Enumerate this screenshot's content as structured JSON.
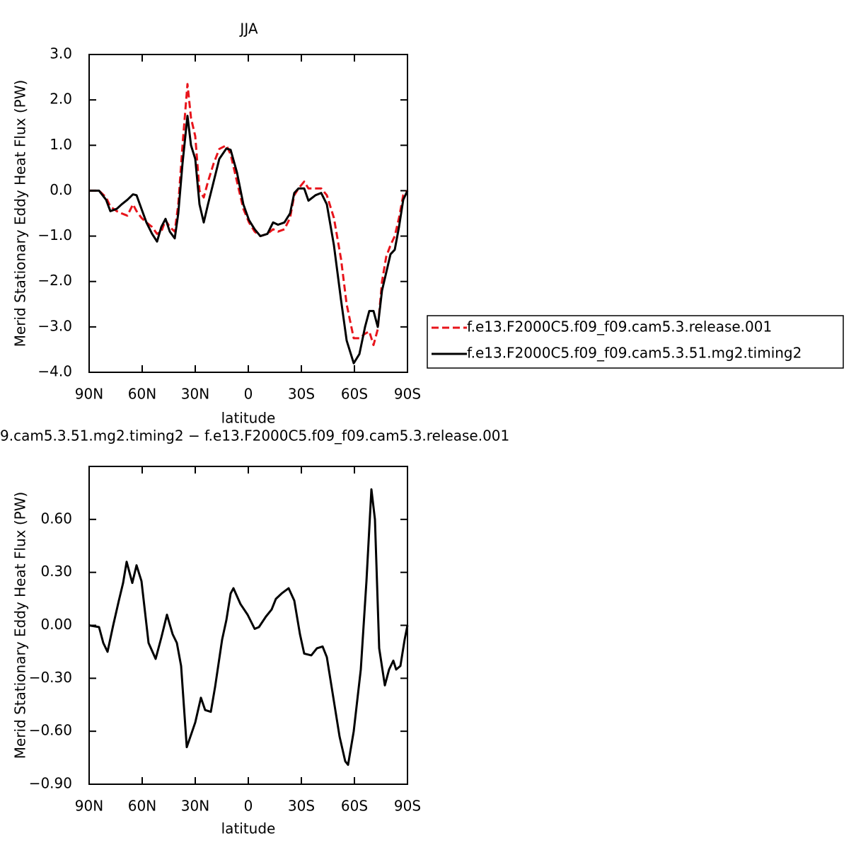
{
  "chart_data": [
    {
      "type": "line",
      "title": "JJA",
      "xlabel": "latitude",
      "ylabel": "Merid Stationary Eddy Heat Flux (PW)",
      "x": [
        90,
        84.4,
        80.4,
        78,
        74.4,
        71.6,
        68.4,
        65.2,
        63.2,
        60.4,
        57.6,
        54.4,
        51.6,
        49.2,
        46.8,
        44.4,
        41.6,
        39.6,
        37.2,
        34.4,
        32.4,
        30,
        27.6,
        25.2,
        22.8,
        19.6,
        16.4,
        12.4,
        10,
        6.4,
        2.8,
        -0.4,
        -3.6,
        -6.8,
        -10.8,
        -14,
        -16.8,
        -20.4,
        -23.6,
        -26,
        -28.4,
        -31.6,
        -34,
        -38,
        -41.2,
        -44.4,
        -48.4,
        -52.4,
        -55.6,
        -59.6,
        -62.8,
        -66,
        -68.4,
        -70.8,
        -73.2,
        -75.6,
        -78,
        -80.4,
        -82.8,
        -85.2,
        -87.6,
        -90
      ],
      "series": [
        {
          "name": "f.e13.F2000C5.f09_f09.cam5.3.release.001",
          "color": "#e8141b",
          "dashed": true,
          "values": [
            0,
            0,
            -0.15,
            -0.35,
            -0.45,
            -0.5,
            -0.55,
            -0.3,
            -0.45,
            -0.6,
            -0.7,
            -0.8,
            -0.95,
            -0.9,
            -0.65,
            -0.8,
            -0.9,
            -0.3,
            1.0,
            2.35,
            1.6,
            1.2,
            0.0,
            -0.15,
            0.2,
            0.6,
            0.92,
            1.0,
            0.8,
            0.2,
            -0.4,
            -0.7,
            -0.9,
            -1.0,
            -0.95,
            -0.85,
            -0.9,
            -0.85,
            -0.6,
            -0.1,
            0.05,
            0.2,
            0.05,
            0.05,
            0.05,
            -0.1,
            -0.6,
            -1.5,
            -2.5,
            -3.25,
            -3.25,
            -3.15,
            -3.1,
            -3.4,
            -3.05,
            -2.0,
            -1.45,
            -1.2,
            -1.0,
            -0.6,
            -0.1,
            0
          ]
        },
        {
          "name": "f.e13.F2000C5.f09_f09.cam5.3.51.mg2.timing2",
          "color": "#000000",
          "dashed": false,
          "values": [
            0,
            0,
            -0.2,
            -0.45,
            -0.4,
            -0.3,
            -0.2,
            -0.08,
            -0.1,
            -0.4,
            -0.7,
            -0.95,
            -1.12,
            -0.8,
            -0.62,
            -0.9,
            -1.05,
            -0.5,
            0.6,
            1.65,
            1.0,
            0.7,
            -0.3,
            -0.7,
            -0.3,
            0.2,
            0.7,
            0.93,
            0.9,
            0.4,
            -0.3,
            -0.65,
            -0.85,
            -1.0,
            -0.95,
            -0.7,
            -0.75,
            -0.7,
            -0.5,
            -0.05,
            0.05,
            0.05,
            -0.22,
            -0.1,
            -0.05,
            -0.3,
            -1.2,
            -2.4,
            -3.3,
            -3.8,
            -3.6,
            -3.0,
            -2.65,
            -2.65,
            -3.0,
            -2.2,
            -1.8,
            -1.4,
            -1.3,
            -0.8,
            -0.2,
            0
          ]
        }
      ],
      "xlim": [
        90,
        -90
      ],
      "xticks": [
        {
          "value": 90,
          "label": "90N"
        },
        {
          "value": 60,
          "label": "60N"
        },
        {
          "value": 30,
          "label": "30N"
        },
        0,
        {
          "value": -30,
          "label": "30S"
        },
        {
          "value": -60,
          "label": "60S"
        },
        {
          "value": -90,
          "label": "90S"
        }
      ],
      "ylim": [
        -4,
        3
      ],
      "yticks": [
        {
          "value": 3,
          "label": "3.0"
        },
        {
          "value": 2,
          "label": "2.0"
        },
        {
          "value": 1,
          "label": "1.0"
        },
        {
          "value": 0,
          "label": "0.0"
        },
        {
          "value": -1,
          "label": "−1.0"
        },
        {
          "value": -2,
          "label": "−2.0"
        },
        {
          "value": -3,
          "label": "−3.0"
        },
        {
          "value": -4,
          "label": "−4.0"
        }
      ],
      "legend": "right"
    },
    {
      "type": "line",
      "title": "9.cam5.3.51.mg2.timing2 − f.e13.F2000C5.f09_f09.cam5.3.release.001",
      "xlabel": "latitude",
      "ylabel": "Merid Stationary Eddy Heat Flux (PW)",
      "x": [
        90,
        84.4,
        82,
        79.6,
        76.4,
        73.2,
        70.8,
        68.8,
        65.6,
        63.2,
        60.4,
        56.4,
        52.4,
        49.2,
        46,
        42.8,
        40.4,
        38,
        34.8,
        32.4,
        30,
        26.8,
        24.4,
        21.2,
        18.8,
        14.8,
        12.4,
        10,
        8.4,
        4.4,
        0.4,
        -3.6,
        -6,
        -10,
        -13.2,
        -15.6,
        -18.8,
        -22.8,
        -26,
        -29.2,
        -31.6,
        -35.6,
        -38.8,
        -42,
        -44.4,
        -47.6,
        -51.6,
        -54.8,
        -56.4,
        -59.6,
        -63.6,
        -66.8,
        -69.6,
        -71.6,
        -74,
        -77.2,
        -79.6,
        -82,
        -83.6,
        -86,
        -88.4,
        -90
      ],
      "series": [
        {
          "color": "#000000",
          "dashed": false,
          "values": [
            0,
            -0.01,
            -0.1,
            -0.15,
            0,
            0.14,
            0.24,
            0.36,
            0.24,
            0.34,
            0.25,
            -0.1,
            -0.19,
            -0.07,
            0.06,
            -0.05,
            -0.1,
            -0.23,
            -0.69,
            -0.62,
            -0.55,
            -0.41,
            -0.48,
            -0.49,
            -0.35,
            -0.08,
            0.03,
            0.18,
            0.21,
            0.12,
            0.06,
            -0.02,
            -0.01,
            0.05,
            0.09,
            0.15,
            0.18,
            0.21,
            0.14,
            -0.05,
            -0.16,
            -0.17,
            -0.13,
            -0.12,
            -0.18,
            -0.38,
            -0.63,
            -0.77,
            -0.79,
            -0.6,
            -0.25,
            0.25,
            0.77,
            0.6,
            -0.13,
            -0.34,
            -0.25,
            -0.2,
            -0.25,
            -0.23,
            -0.08,
            0
          ]
        }
      ],
      "xlim": [
        90,
        -90
      ],
      "xticks": [
        {
          "value": 90,
          "label": "90N"
        },
        {
          "value": 60,
          "label": "60N"
        },
        {
          "value": 30,
          "label": "30N"
        },
        0,
        {
          "value": -30,
          "label": "30S"
        },
        {
          "value": -60,
          "label": "60S"
        },
        {
          "value": -90,
          "label": "90S"
        }
      ],
      "ylim": [
        -0.9,
        0.9
      ],
      "yticks": [
        {
          "value": 0.6,
          "label": "0.60"
        },
        {
          "value": 0.3,
          "label": "0.30"
        },
        {
          "value": 0,
          "label": "0.00"
        },
        {
          "value": -0.3,
          "label": "−0.30"
        },
        {
          "value": -0.6,
          "label": "−0.60"
        },
        {
          "value": -0.9,
          "label": "−0.90"
        }
      ]
    }
  ]
}
